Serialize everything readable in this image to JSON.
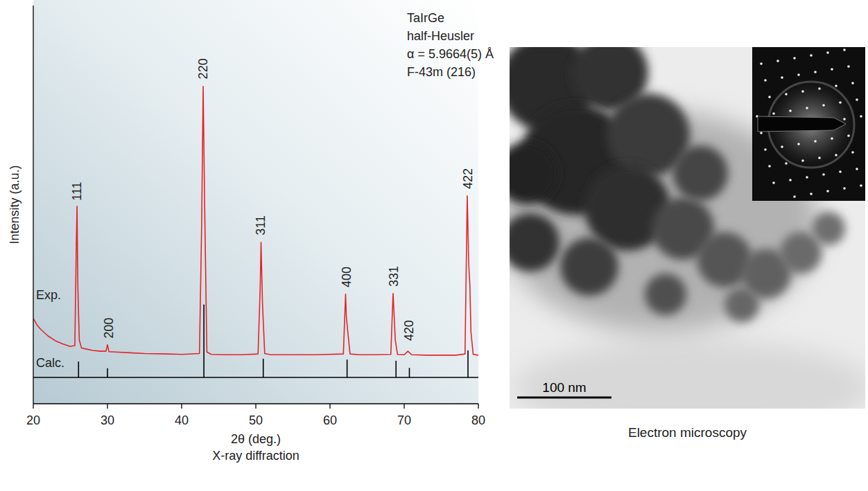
{
  "chart_data": {
    "type": "line",
    "x_label": "2θ (deg.)",
    "x_caption": "X-ray diffraction",
    "y_label": "Intensity (a.u.)",
    "text_box": [
      "TaIrGe",
      "half-Heusler",
      "α = 5.9664(5) Å",
      "F-43m (216)"
    ],
    "xlim": [
      20,
      80
    ],
    "xticks": [
      20,
      30,
      40,
      50,
      60,
      70,
      80
    ],
    "ylim": [
      0,
      100
    ],
    "tick_labels": "x",
    "grid": false,
    "series": [
      {
        "name": "Exp.",
        "type": "line",
        "color": "#e3242b",
        "x": [
          20,
          20.5,
          21,
          22,
          23,
          24,
          25,
          25.6,
          25.8,
          25.9,
          26.0,
          26.2,
          26.5,
          27,
          28,
          29,
          29.8,
          30.0,
          30.2,
          31,
          33,
          35,
          38,
          40,
          42.4,
          42.7,
          42.9,
          43.1,
          43.4,
          44,
          46,
          48,
          50.3,
          50.6,
          50.7,
          50.9,
          51.2,
          52,
          55,
          58,
          61.8,
          62.1,
          62.2,
          62.4,
          62.7,
          64,
          66,
          68.2,
          68.5,
          68.6,
          68.8,
          69.1,
          70,
          70.5,
          71,
          73,
          75,
          77,
          78.2,
          78.5,
          78.7,
          78.85,
          79.0,
          79.3,
          80
        ],
        "values": [
          21.4,
          19.8,
          18.7,
          17,
          15.8,
          15,
          14.4,
          14.6,
          40,
          49.6,
          30,
          16,
          14,
          13.8,
          13.4,
          13.2,
          13.2,
          14.8,
          13.1,
          13,
          12.8,
          12.6,
          12.5,
          12.4,
          12.6,
          45,
          79.7,
          50,
          13,
          12.4,
          12.3,
          12.3,
          12.5,
          30,
          40.5,
          25,
          12.6,
          12.3,
          12.3,
          12.3,
          12.5,
          27.5,
          22,
          18,
          12.5,
          12.3,
          12.3,
          12.4,
          27.7,
          24,
          16,
          12.4,
          12.3,
          13.2,
          12.3,
          12.2,
          12.2,
          12.2,
          12.5,
          52.2,
          35,
          30,
          18,
          12.4,
          12.2
        ]
      },
      {
        "name": "Calc.",
        "type": "stick",
        "color": "#000000",
        "baseline": 6.6,
        "x": [
          26.1,
          30.0,
          43.0,
          51.0,
          62.3,
          68.9,
          70.7,
          78.6
        ],
        "values": [
          10.6,
          8.9,
          24.9,
          11.3,
          11.1,
          10.8,
          9.0,
          13.4
        ]
      }
    ],
    "annotations": [
      {
        "text": "111",
        "x": 25.9,
        "y": 51
      },
      {
        "text": "200",
        "x": 30.2,
        "y": 16.4
      },
      {
        "text": "220",
        "x": 42.9,
        "y": 81.5
      },
      {
        "text": "311",
        "x": 50.7,
        "y": 42.3
      },
      {
        "text": "400",
        "x": 62.2,
        "y": 29.2
      },
      {
        "text": "331",
        "x": 68.6,
        "y": 29.4
      },
      {
        "text": "420",
        "x": 70.7,
        "y": 15.8
      },
      {
        "text": "422",
        "x": 78.6,
        "y": 53.9
      }
    ]
  },
  "image": {
    "scale_bar": "100 nm",
    "caption": "Electron microscopy"
  }
}
